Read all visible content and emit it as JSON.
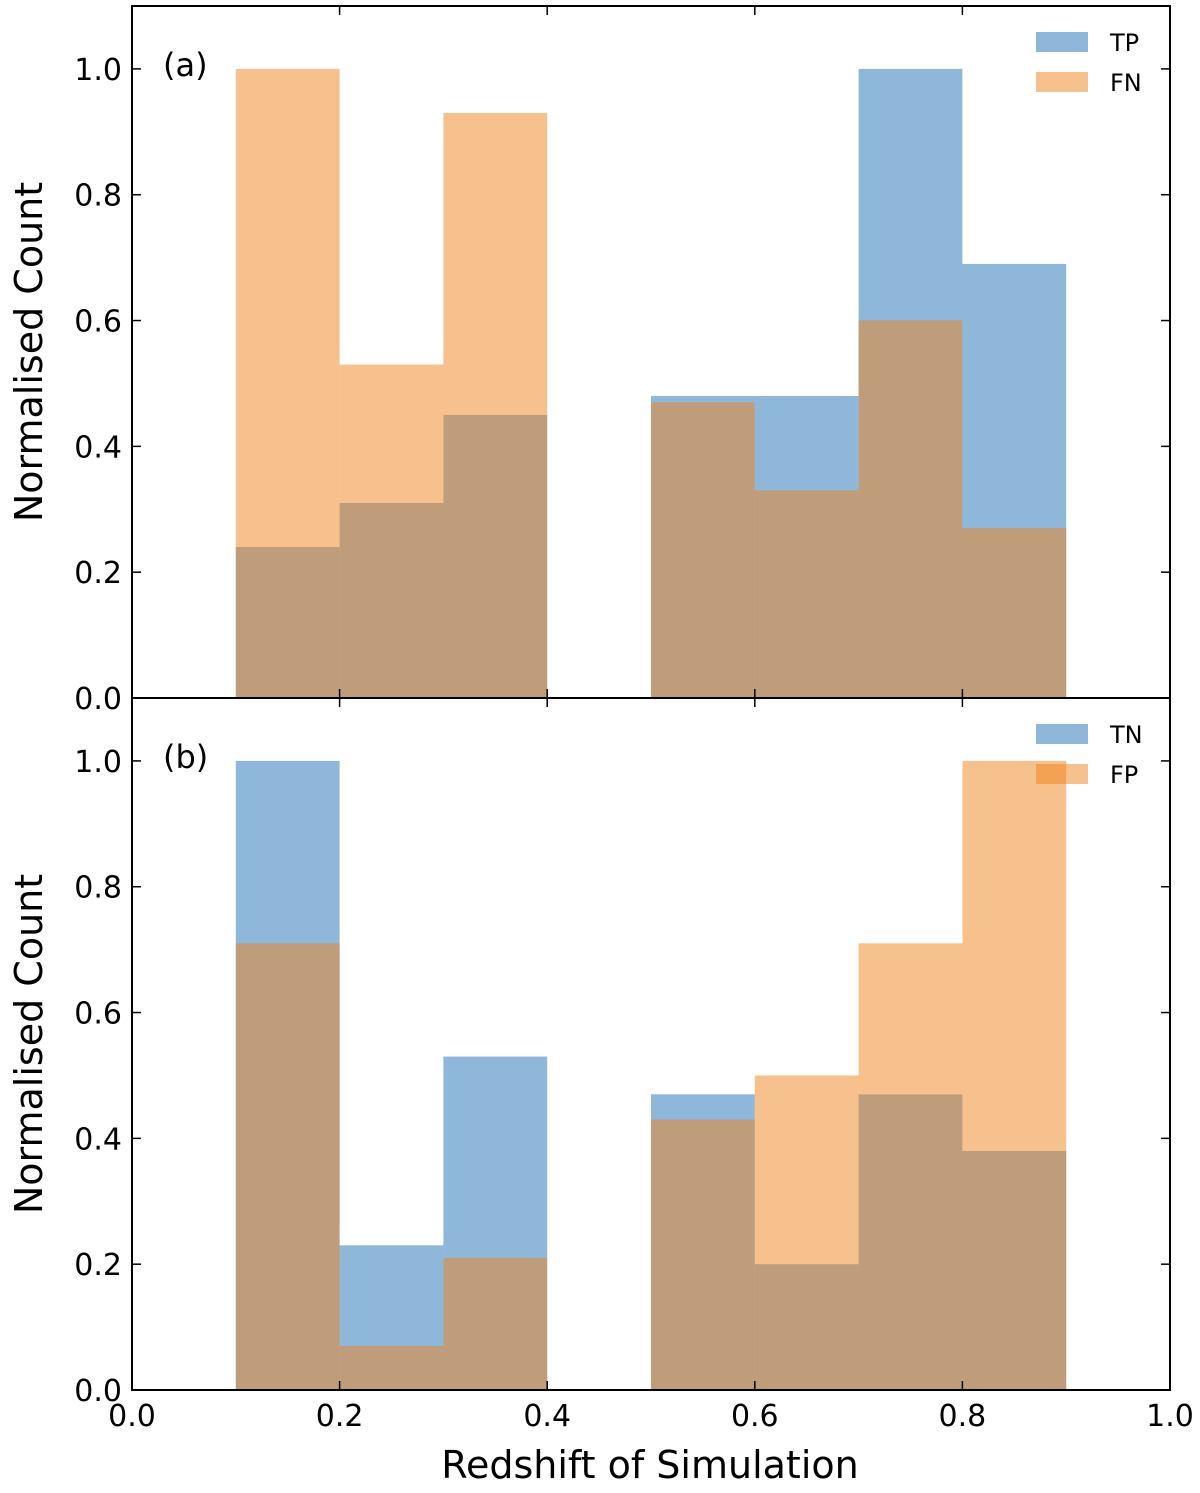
{
  "colors": {
    "series_a": "#1f6fb4",
    "series_b": "#f0841c",
    "overlap": "#bb9a80",
    "axis": "#000000"
  },
  "chart_data": [
    {
      "type": "bar",
      "panel_label": "(a)",
      "bin_edges": [
        0.1,
        0.2,
        0.3,
        0.4,
        0.5,
        0.6,
        0.7,
        0.8,
        0.9
      ],
      "series": [
        {
          "name": "TP",
          "values": [
            0.24,
            0.31,
            0.45,
            0,
            0.48,
            0.48,
            1.0,
            0.69
          ]
        },
        {
          "name": "FN",
          "values": [
            1.0,
            0.53,
            0.93,
            0,
            0.47,
            0.33,
            0.6,
            0.27
          ]
        }
      ],
      "xlabel": "",
      "ylabel": "Normalised Count",
      "xlim": [
        0.0,
        1.0
      ],
      "ylim": [
        0.0,
        1.1
      ],
      "yticks": [
        "0.0",
        "0.2",
        "0.4",
        "0.6",
        "0.8",
        "1.0"
      ],
      "legend": "top-right"
    },
    {
      "type": "bar",
      "panel_label": "(b)",
      "bin_edges": [
        0.1,
        0.2,
        0.3,
        0.4,
        0.5,
        0.6,
        0.7,
        0.8,
        0.9
      ],
      "series": [
        {
          "name": "TN",
          "values": [
            1.0,
            0.23,
            0.53,
            0,
            0.47,
            0.2,
            0.47,
            0.38
          ]
        },
        {
          "name": "FP",
          "values": [
            0.71,
            0.07,
            0.21,
            0,
            0.43,
            0.5,
            0.71,
            1.0
          ]
        }
      ],
      "xlabel": "Redshift of Simulation",
      "ylabel": "Normalised Count",
      "xlim": [
        0.0,
        1.0
      ],
      "ylim": [
        0.0,
        1.1
      ],
      "xticks": [
        "0.0",
        "0.2",
        "0.4",
        "0.6",
        "0.8",
        "1.0"
      ],
      "yticks": [
        "0.0",
        "0.2",
        "0.4",
        "0.6",
        "0.8",
        "1.0"
      ],
      "legend": "top-right"
    }
  ]
}
